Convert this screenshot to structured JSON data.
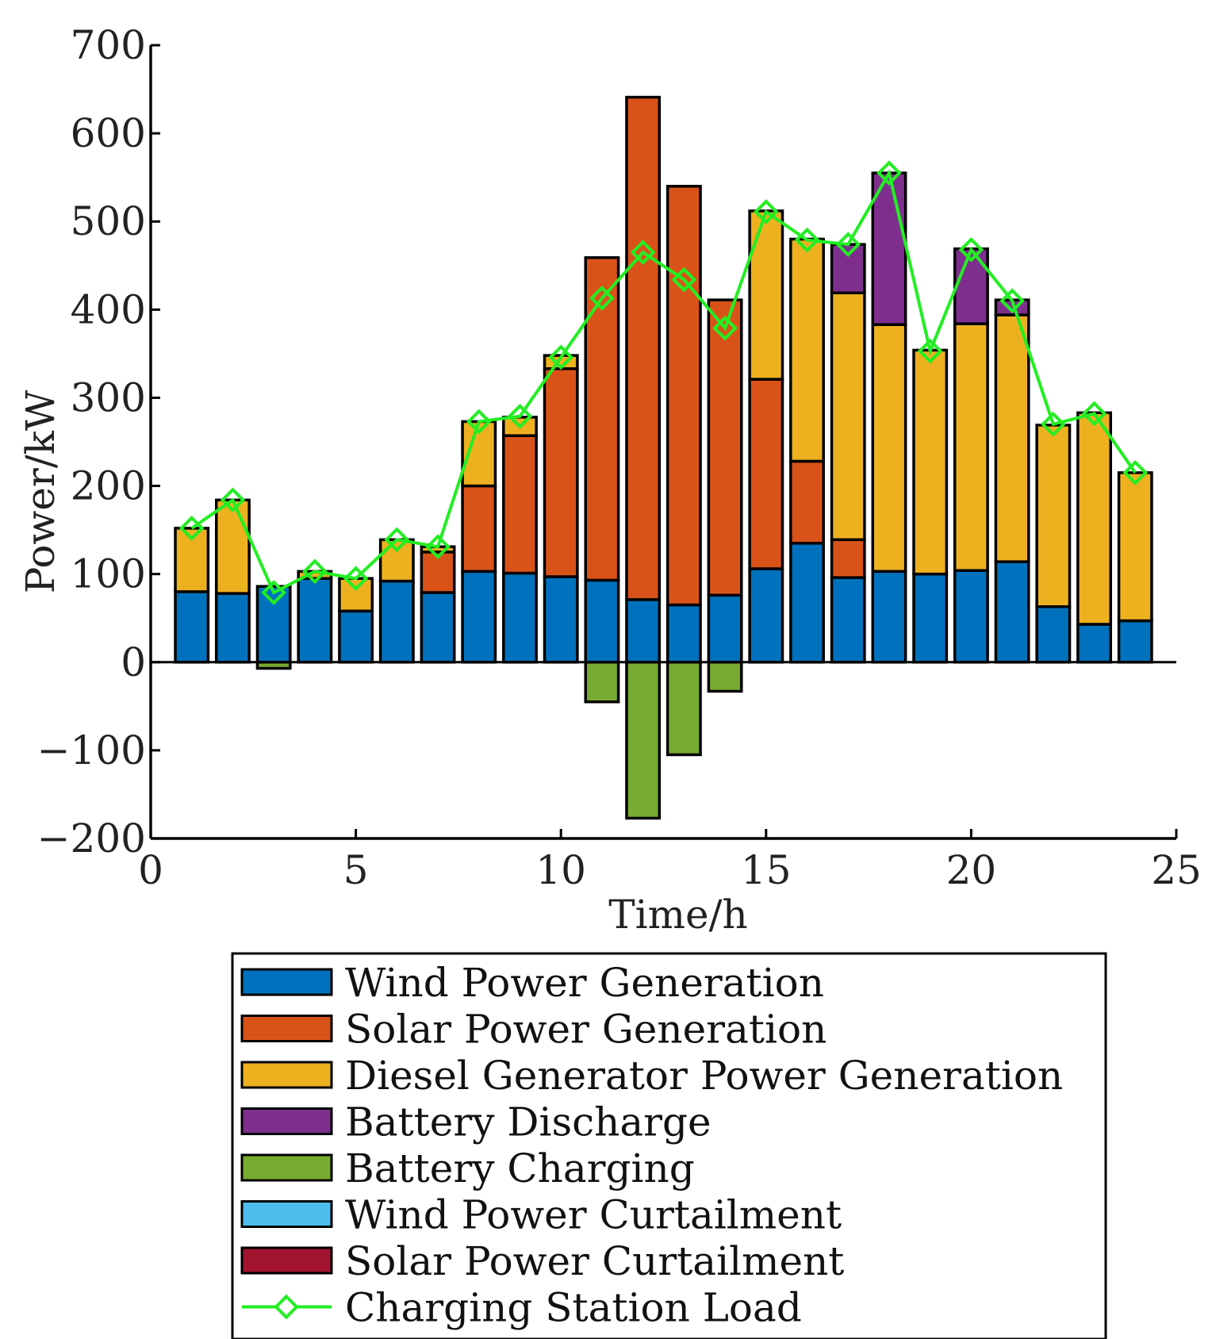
{
  "chart_data": {
    "type": "bar",
    "stacked": true,
    "xlabel": "Time/h",
    "ylabel": "Power/kW",
    "xlim": [
      0,
      25
    ],
    "ylim": [
      -200,
      700
    ],
    "xticks": [
      0,
      5,
      10,
      15,
      20,
      25
    ],
    "yticks": [
      700,
      600,
      500,
      400,
      300,
      200,
      100,
      0,
      -100,
      -200
    ],
    "ytick_labels": [
      "700",
      "600",
      "500",
      "400",
      "300",
      "200",
      "100",
      "0",
      "−100",
      "−200"
    ],
    "x": [
      1,
      2,
      3,
      4,
      5,
      6,
      7,
      8,
      9,
      10,
      11,
      12,
      13,
      14,
      15,
      16,
      17,
      18,
      19,
      20,
      21,
      22,
      23,
      24
    ],
    "series": [
      {
        "name": "Wind Power Generation",
        "color": "#0072BD",
        "values": [
          80,
          78,
          86,
          95,
          58,
          92,
          79,
          103,
          101,
          97,
          93,
          71,
          65,
          76,
          106,
          135,
          96,
          103,
          100,
          104,
          114,
          63,
          43,
          47
        ]
      },
      {
        "name": "Solar Power Generation",
        "color": "#D95319",
        "values": [
          0,
          0,
          0,
          0,
          0,
          0,
          46,
          97,
          156,
          236,
          366,
          570,
          475,
          335,
          215,
          93,
          43,
          0,
          0,
          0,
          0,
          0,
          0,
          0
        ]
      },
      {
        "name": "Diesel Generator Power Generation",
        "color": "#EDB120",
        "values": [
          72,
          106,
          0,
          8,
          37,
          47,
          6,
          73,
          21,
          15,
          0,
          0,
          0,
          0,
          191,
          252,
          280,
          280,
          254,
          280,
          280,
          206,
          240,
          168
        ]
      },
      {
        "name": "Battery Discharge",
        "color": "#7E2F8E",
        "values": [
          0,
          0,
          0,
          0,
          0,
          0,
          0,
          0,
          0,
          0,
          0,
          0,
          0,
          0,
          0,
          0,
          55,
          172,
          0,
          85,
          17,
          0,
          0,
          0
        ]
      },
      {
        "name": "Battery Charging",
        "color": "#77AC30",
        "values": [
          0,
          0,
          -7,
          0,
          0,
          0,
          0,
          0,
          0,
          0,
          -45,
          -177,
          -105,
          -33,
          0,
          0,
          0,
          0,
          0,
          0,
          0,
          0,
          0,
          0
        ]
      },
      {
        "name": "Wind Power Curtailment",
        "color": "#4DBEEE",
        "values": [
          0,
          0,
          0,
          0,
          0,
          0,
          0,
          0,
          0,
          0,
          0,
          0,
          0,
          0,
          0,
          0,
          0,
          0,
          0,
          0,
          0,
          0,
          0,
          0
        ]
      },
      {
        "name": "Solar Power Curtailment",
        "color": "#A2142F",
        "values": [
          0,
          0,
          0,
          0,
          0,
          0,
          0,
          0,
          0,
          0,
          0,
          0,
          0,
          0,
          0,
          0,
          0,
          0,
          0,
          0,
          0,
          0,
          0,
          0
        ]
      }
    ],
    "line": {
      "name": "Charging Station Load",
      "color": "#22EE22",
      "values": [
        152,
        184,
        79,
        103,
        95,
        139,
        131,
        273,
        279,
        346,
        413,
        465,
        434,
        379,
        511,
        479,
        474,
        555,
        353,
        468,
        410,
        270,
        282,
        215
      ]
    },
    "legend": {
      "position": "below"
    }
  }
}
